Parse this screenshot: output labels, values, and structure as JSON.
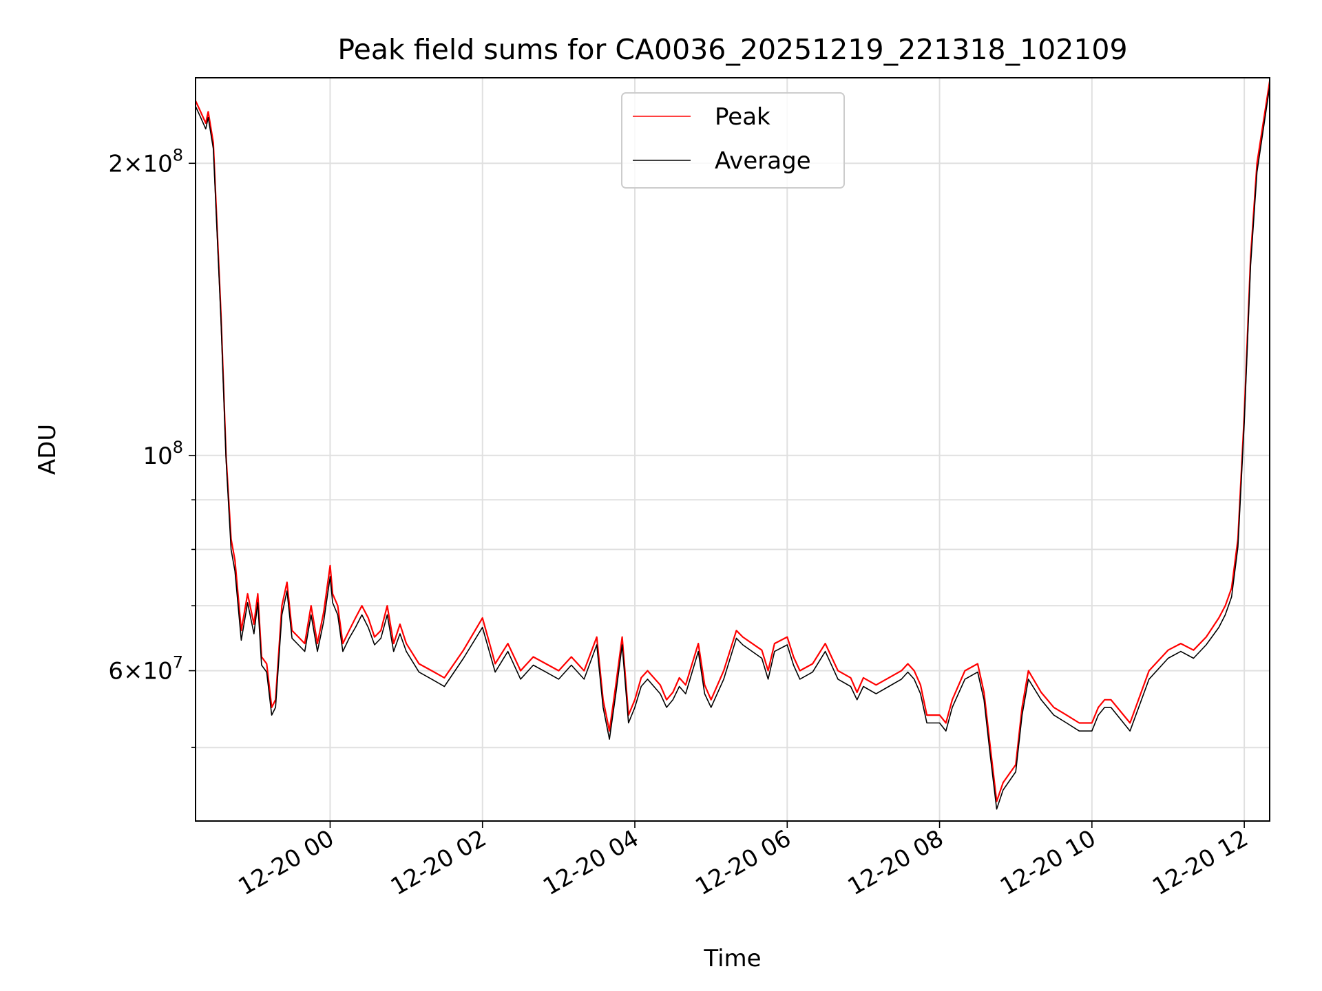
{
  "chart_data": {
    "type": "line",
    "title": "Peak field sums for CA0036_20251219_221318_102109",
    "xlabel": "Time",
    "ylabel": "ADU",
    "yscale": "log",
    "x_range": [
      "2025-12-19 22:14",
      "2025-12-20 12:20"
    ],
    "ylim": [
      42000000,
      245000000
    ],
    "grid": true,
    "legend_position": "upper center",
    "x_ticks": [
      {
        "time": "2025-12-20 00:00",
        "label": "12-20 00"
      },
      {
        "time": "2025-12-20 02:00",
        "label": "12-20 02"
      },
      {
        "time": "2025-12-20 04:00",
        "label": "12-20 04"
      },
      {
        "time": "2025-12-20 06:00",
        "label": "12-20 06"
      },
      {
        "time": "2025-12-20 08:00",
        "label": "12-20 08"
      },
      {
        "time": "2025-12-20 10:00",
        "label": "12-20 10"
      },
      {
        "time": "2025-12-20 12:00",
        "label": "12-20 12"
      }
    ],
    "y_major_ticks": [
      {
        "value": 60000000,
        "mantissa": "6×10",
        "exp": "7"
      },
      {
        "value": 100000000,
        "mantissa": "10",
        "exp": "8"
      },
      {
        "value": 200000000,
        "mantissa": "2×10",
        "exp": "8"
      }
    ],
    "y_minor_ticks": [
      50000000,
      70000000,
      80000000,
      90000000
    ],
    "series": [
      {
        "name": "Peak",
        "color": "#ff0000",
        "x": [
          "2025-12-19 22:14",
          "2025-12-19 22:18",
          "2025-12-19 22:22",
          "2025-12-19 22:24",
          "2025-12-19 22:28",
          "2025-12-19 22:34",
          "2025-12-19 22:38",
          "2025-12-19 22:42",
          "2025-12-19 22:45",
          "2025-12-19 22:50",
          "2025-12-19 22:55",
          "2025-12-19 23:00",
          "2025-12-19 23:03",
          "2025-12-19 23:06",
          "2025-12-19 23:10",
          "2025-12-19 23:14",
          "2025-12-19 23:17",
          "2025-12-19 23:22",
          "2025-12-19 23:26",
          "2025-12-19 23:30",
          "2025-12-19 23:35",
          "2025-12-19 23:40",
          "2025-12-19 23:45",
          "2025-12-19 23:50",
          "2025-12-19 23:55",
          "2025-12-20 00:00",
          "2025-12-20 00:02",
          "2025-12-20 00:06",
          "2025-12-20 00:10",
          "2025-12-20 00:15",
          "2025-12-20 00:20",
          "2025-12-20 00:25",
          "2025-12-20 00:30",
          "2025-12-20 00:35",
          "2025-12-20 00:40",
          "2025-12-20 00:45",
          "2025-12-20 00:50",
          "2025-12-20 00:55",
          "2025-12-20 01:00",
          "2025-12-20 01:10",
          "2025-12-20 01:20",
          "2025-12-20 01:30",
          "2025-12-20 01:45",
          "2025-12-20 02:00",
          "2025-12-20 02:10",
          "2025-12-20 02:20",
          "2025-12-20 02:30",
          "2025-12-20 02:40",
          "2025-12-20 02:50",
          "2025-12-20 03:00",
          "2025-12-20 03:10",
          "2025-12-20 03:20",
          "2025-12-20 03:30",
          "2025-12-20 03:35",
          "2025-12-20 03:40",
          "2025-12-20 03:45",
          "2025-12-20 03:50",
          "2025-12-20 03:55",
          "2025-12-20 04:00",
          "2025-12-20 04:05",
          "2025-12-20 04:10",
          "2025-12-20 04:20",
          "2025-12-20 04:25",
          "2025-12-20 04:30",
          "2025-12-20 04:35",
          "2025-12-20 04:40",
          "2025-12-20 04:50",
          "2025-12-20 04:55",
          "2025-12-20 05:00",
          "2025-12-20 05:10",
          "2025-12-20 05:20",
          "2025-12-20 05:25",
          "2025-12-20 05:40",
          "2025-12-20 05:45",
          "2025-12-20 05:50",
          "2025-12-20 06:00",
          "2025-12-20 06:05",
          "2025-12-20 06:10",
          "2025-12-20 06:20",
          "2025-12-20 06:30",
          "2025-12-20 06:40",
          "2025-12-20 06:50",
          "2025-12-20 06:55",
          "2025-12-20 07:00",
          "2025-12-20 07:10",
          "2025-12-20 07:20",
          "2025-12-20 07:30",
          "2025-12-20 07:35",
          "2025-12-20 07:40",
          "2025-12-20 07:45",
          "2025-12-20 07:50",
          "2025-12-20 08:00",
          "2025-12-20 08:05",
          "2025-12-20 08:10",
          "2025-12-20 08:20",
          "2025-12-20 08:30",
          "2025-12-20 08:35",
          "2025-12-20 08:40",
          "2025-12-20 08:45",
          "2025-12-20 08:50",
          "2025-12-20 09:00",
          "2025-12-20 09:05",
          "2025-12-20 09:10",
          "2025-12-20 09:20",
          "2025-12-20 09:30",
          "2025-12-20 09:40",
          "2025-12-20 09:50",
          "2025-12-20 10:00",
          "2025-12-20 10:05",
          "2025-12-20 10:10",
          "2025-12-20 10:15",
          "2025-12-20 10:30",
          "2025-12-20 10:45",
          "2025-12-20 11:00",
          "2025-12-20 11:10",
          "2025-12-20 11:20",
          "2025-12-20 11:30",
          "2025-12-20 11:40",
          "2025-12-20 11:45",
          "2025-12-20 11:50",
          "2025-12-20 11:55",
          "2025-12-20 12:00",
          "2025-12-20 12:05",
          "2025-12-20 12:10",
          "2025-12-20 12:20"
        ],
        "y": [
          232000000,
          226000000,
          220000000,
          226000000,
          210000000,
          140000000,
          100000000,
          82000000,
          78000000,
          66000000,
          72000000,
          67000000,
          72000000,
          62000000,
          61000000,
          55000000,
          56000000,
          70000000,
          74000000,
          66000000,
          65000000,
          64000000,
          70000000,
          64000000,
          69000000,
          77000000,
          72000000,
          70000000,
          64000000,
          66000000,
          68000000,
          70000000,
          68000000,
          65000000,
          66000000,
          70000000,
          64000000,
          67000000,
          64000000,
          61000000,
          60000000,
          59000000,
          63000000,
          68000000,
          61000000,
          64000000,
          60000000,
          62000000,
          61000000,
          60000000,
          62000000,
          60000000,
          65000000,
          56000000,
          52000000,
          58000000,
          65000000,
          54000000,
          56000000,
          59000000,
          60000000,
          58000000,
          56000000,
          57000000,
          59000000,
          58000000,
          64000000,
          58000000,
          56000000,
          60000000,
          66000000,
          65000000,
          63000000,
          60000000,
          64000000,
          65000000,
          62000000,
          60000000,
          61000000,
          64000000,
          60000000,
          59000000,
          57000000,
          59000000,
          58000000,
          59000000,
          60000000,
          61000000,
          60000000,
          58000000,
          54000000,
          54000000,
          53000000,
          56000000,
          60000000,
          61000000,
          57000000,
          50000000,
          44000000,
          46000000,
          48000000,
          55000000,
          60000000,
          57000000,
          55000000,
          54000000,
          53000000,
          53000000,
          55000000,
          56000000,
          56000000,
          53000000,
          60000000,
          63000000,
          64000000,
          63000000,
          65000000,
          68000000,
          70000000,
          73000000,
          82000000,
          110000000,
          160000000,
          200000000,
          243000000
        ]
      },
      {
        "name": "Average",
        "color": "#000000",
        "x": [
          "2025-12-19 22:14",
          "2025-12-19 22:18",
          "2025-12-19 22:22",
          "2025-12-19 22:24",
          "2025-12-19 22:28",
          "2025-12-19 22:34",
          "2025-12-19 22:38",
          "2025-12-19 22:42",
          "2025-12-19 22:45",
          "2025-12-19 22:50",
          "2025-12-19 22:55",
          "2025-12-19 23:00",
          "2025-12-19 23:03",
          "2025-12-19 23:06",
          "2025-12-19 23:10",
          "2025-12-19 23:14",
          "2025-12-19 23:17",
          "2025-12-19 23:22",
          "2025-12-19 23:26",
          "2025-12-19 23:30",
          "2025-12-19 23:35",
          "2025-12-19 23:40",
          "2025-12-19 23:45",
          "2025-12-19 23:50",
          "2025-12-19 23:55",
          "2025-12-20 00:00",
          "2025-12-20 00:02",
          "2025-12-20 00:06",
          "2025-12-20 00:10",
          "2025-12-20 00:15",
          "2025-12-20 00:20",
          "2025-12-20 00:25",
          "2025-12-20 00:30",
          "2025-12-20 00:35",
          "2025-12-20 00:40",
          "2025-12-20 00:45",
          "2025-12-20 00:50",
          "2025-12-20 00:55",
          "2025-12-20 01:00",
          "2025-12-20 01:10",
          "2025-12-20 01:20",
          "2025-12-20 01:30",
          "2025-12-20 01:45",
          "2025-12-20 02:00",
          "2025-12-20 02:10",
          "2025-12-20 02:20",
          "2025-12-20 02:30",
          "2025-12-20 02:40",
          "2025-12-20 02:50",
          "2025-12-20 03:00",
          "2025-12-20 03:10",
          "2025-12-20 03:20",
          "2025-12-20 03:30",
          "2025-12-20 03:35",
          "2025-12-20 03:40",
          "2025-12-20 03:45",
          "2025-12-20 03:50",
          "2025-12-20 03:55",
          "2025-12-20 04:00",
          "2025-12-20 04:05",
          "2025-12-20 04:10",
          "2025-12-20 04:20",
          "2025-12-20 04:25",
          "2025-12-20 04:30",
          "2025-12-20 04:35",
          "2025-12-20 04:40",
          "2025-12-20 04:50",
          "2025-12-20 04:55",
          "2025-12-20 05:00",
          "2025-12-20 05:10",
          "2025-12-20 05:20",
          "2025-12-20 05:25",
          "2025-12-20 05:40",
          "2025-12-20 05:45",
          "2025-12-20 05:50",
          "2025-12-20 06:00",
          "2025-12-20 06:05",
          "2025-12-20 06:10",
          "2025-12-20 06:20",
          "2025-12-20 06:30",
          "2025-12-20 06:40",
          "2025-12-20 06:50",
          "2025-12-20 06:55",
          "2025-12-20 07:00",
          "2025-12-20 07:10",
          "2025-12-20 07:20",
          "2025-12-20 07:30",
          "2025-12-20 07:35",
          "2025-12-20 07:40",
          "2025-12-20 07:45",
          "2025-12-20 07:50",
          "2025-12-20 08:00",
          "2025-12-20 08:05",
          "2025-12-20 08:10",
          "2025-12-20 08:20",
          "2025-12-20 08:30",
          "2025-12-20 08:35",
          "2025-12-20 08:40",
          "2025-12-20 08:45",
          "2025-12-20 08:50",
          "2025-12-20 09:00",
          "2025-12-20 09:05",
          "2025-12-20 09:10",
          "2025-12-20 09:20",
          "2025-12-20 09:30",
          "2025-12-20 09:40",
          "2025-12-20 09:50",
          "2025-12-20 10:00",
          "2025-12-20 10:05",
          "2025-12-20 10:10",
          "2025-12-20 10:15",
          "2025-12-20 10:30",
          "2025-12-20 10:45",
          "2025-12-20 11:00",
          "2025-12-20 11:10",
          "2025-12-20 11:20",
          "2025-12-20 11:30",
          "2025-12-20 11:40",
          "2025-12-20 11:45",
          "2025-12-20 11:50",
          "2025-12-20 11:55",
          "2025-12-20 12:00",
          "2025-12-20 12:05",
          "2025-12-20 12:10",
          "2025-12-20 12:20"
        ],
        "y": [
          229000000,
          223000000,
          217000000,
          223000000,
          207000000,
          138000000,
          99000000,
          80000000,
          76000000,
          64500000,
          70500000,
          65500000,
          70500000,
          60800000,
          59800000,
          54000000,
          55000000,
          68500000,
          72500000,
          64800000,
          63800000,
          62800000,
          68500000,
          62800000,
          67500000,
          75000000,
          70500000,
          68500000,
          62800000,
          64800000,
          66500000,
          68500000,
          66500000,
          63800000,
          64800000,
          68500000,
          62800000,
          65500000,
          62800000,
          59800000,
          58800000,
          57800000,
          61800000,
          66500000,
          59800000,
          62800000,
          58800000,
          60800000,
          59800000,
          58800000,
          60800000,
          58800000,
          63800000,
          55000000,
          51000000,
          56800000,
          63800000,
          53000000,
          55000000,
          57800000,
          58800000,
          56800000,
          55000000,
          56000000,
          57800000,
          56800000,
          62800000,
          56800000,
          55000000,
          58800000,
          64800000,
          63800000,
          61800000,
          58800000,
          62800000,
          63800000,
          60800000,
          58800000,
          59800000,
          62800000,
          58800000,
          57800000,
          56000000,
          57800000,
          56800000,
          57800000,
          58800000,
          59800000,
          58800000,
          56800000,
          53000000,
          53000000,
          52000000,
          55000000,
          58800000,
          59800000,
          56000000,
          49000000,
          43200000,
          45200000,
          47200000,
          54000000,
          58800000,
          56000000,
          54000000,
          53000000,
          52000000,
          52000000,
          54000000,
          55000000,
          55000000,
          52000000,
          58800000,
          61800000,
          62800000,
          61800000,
          63800000,
          66500000,
          68500000,
          71500000,
          80500000,
          108000000,
          157000000,
          196000000,
          240000000
        ]
      }
    ]
  }
}
